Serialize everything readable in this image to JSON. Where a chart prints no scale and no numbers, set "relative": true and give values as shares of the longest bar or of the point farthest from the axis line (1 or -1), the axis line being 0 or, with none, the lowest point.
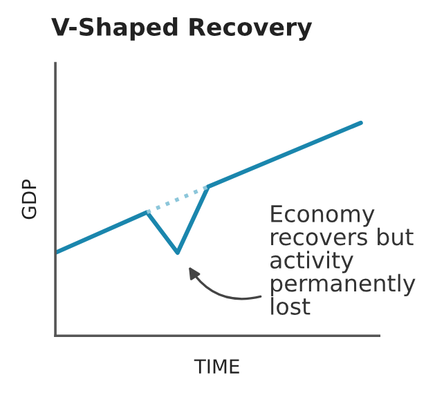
{
  "chart_data": {
    "type": "line",
    "title": "V-Shaped Recovery",
    "xlabel": "TIME",
    "ylabel": "GDP",
    "relative": true,
    "categories": [
      null,
      null,
      null,
      null,
      null,
      null,
      null,
      null,
      null,
      null,
      null
    ],
    "series": [
      {
        "color": "#1a86ad",
        "values": [
          0.39,
          null,
          null,
          0.58,
          0.39,
          0.7,
          null,
          null,
          null,
          null,
          1.0
        ],
        "line_style": "solid"
      },
      {
        "color": "#8cc6da",
        "values": [
          null,
          null,
          null,
          0.58,
          null,
          0.7,
          null,
          null,
          null,
          null,
          null
        ],
        "line_style": "dotted"
      }
    ],
    "annotations": [
      "Economy\nrecovers but\nactivity\npermanently\nlost"
    ]
  }
}
